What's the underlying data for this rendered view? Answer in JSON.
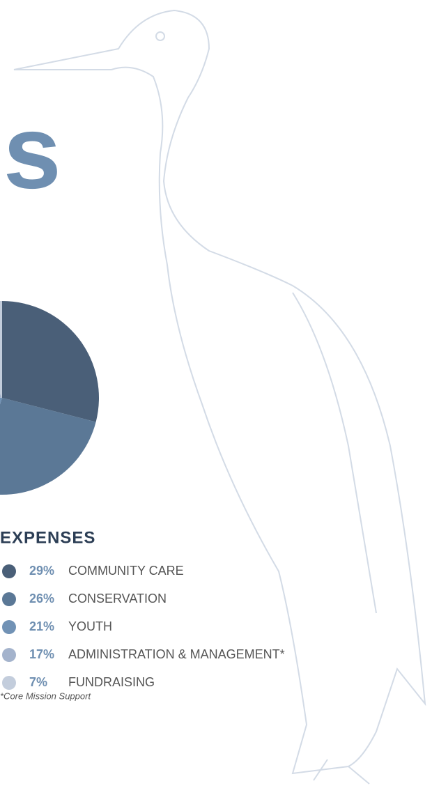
{
  "chart_data": {
    "type": "pie",
    "heading": "ls",
    "legend_title": "EXPENSES",
    "categories": [
      "COMMUNITY CARE",
      "CONSERVATION",
      "YOUTH",
      "ADMINISTRATION & MANAGEMENT*",
      "FUNDRAISING"
    ],
    "values": [
      29,
      26,
      21,
      17,
      7
    ],
    "value_labels": [
      "29%",
      "26%",
      "21%",
      "17%",
      "7%"
    ],
    "colors": [
      "#4a5f78",
      "#5b7896",
      "#7192b5",
      "#a4b3cc",
      "#c3cddc"
    ],
    "footnote": "*Core Mission Support"
  }
}
